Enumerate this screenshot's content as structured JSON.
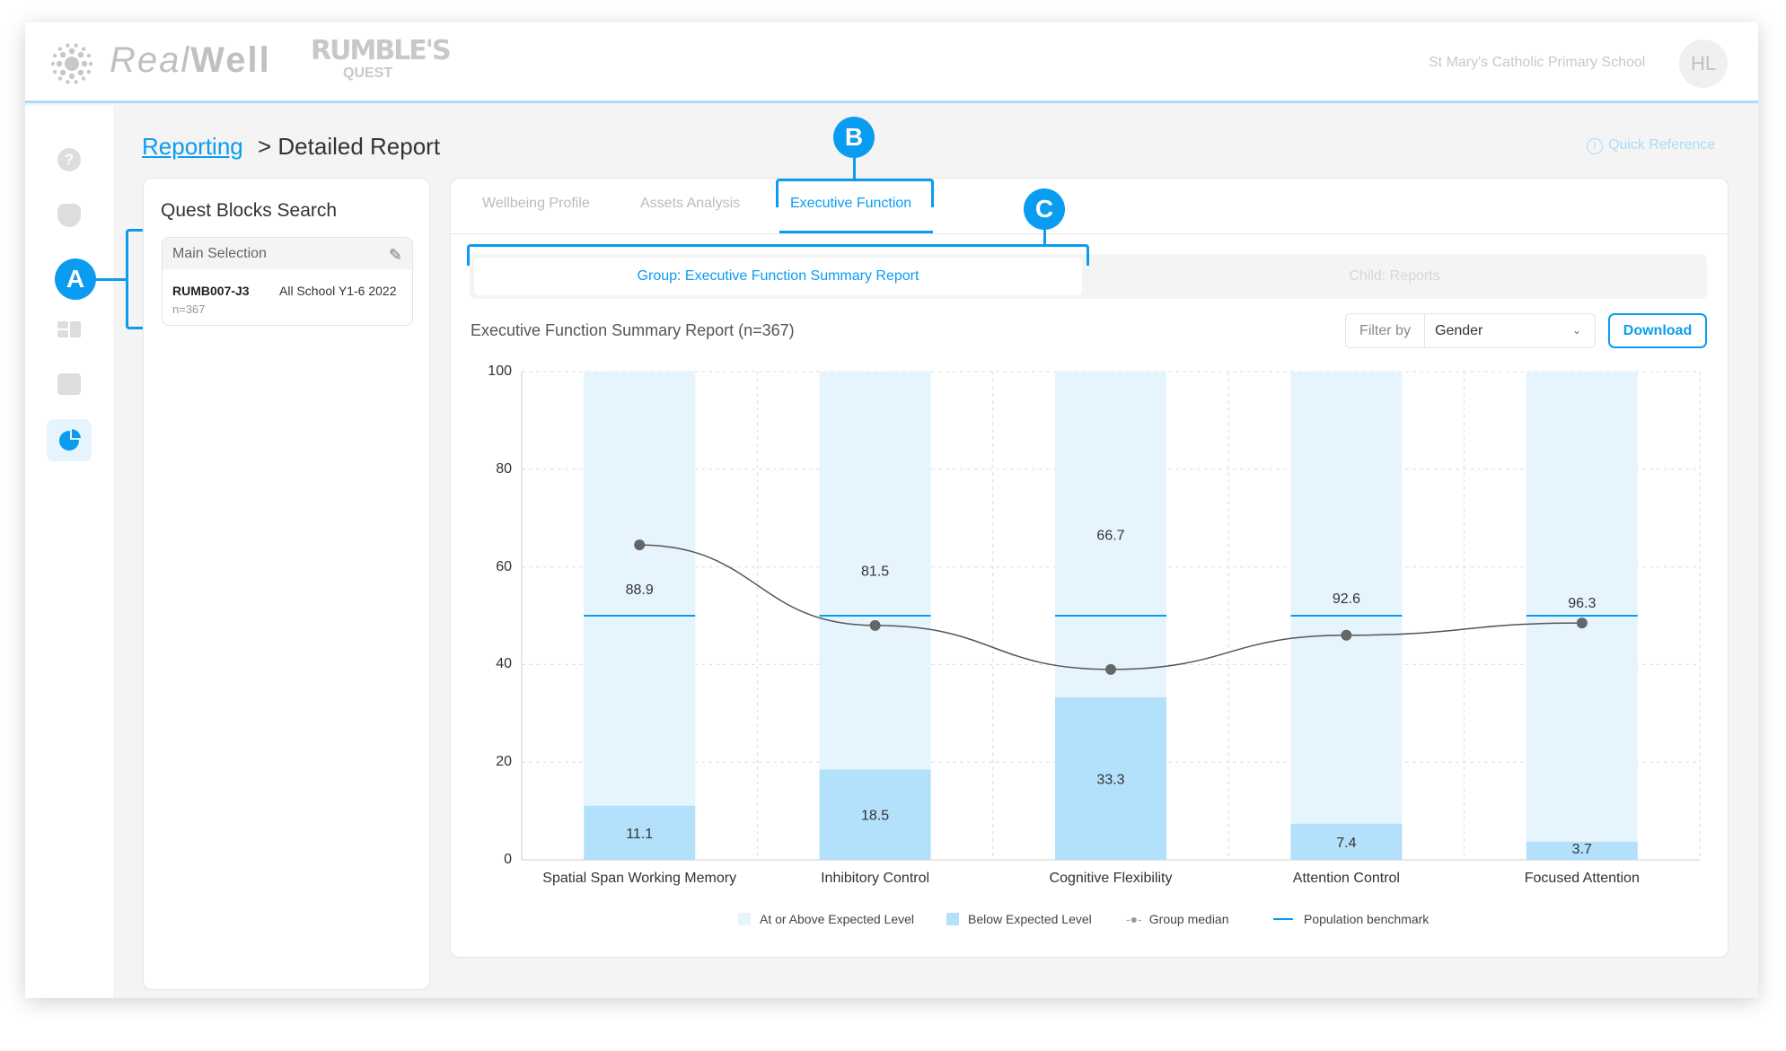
{
  "header": {
    "logo_realwell_light": "Real",
    "logo_realwell_bold": "Well",
    "logo_rumbles": "RUMBLE'S",
    "logo_quest": "QUEST",
    "school": "St Mary's Catholic Primary School",
    "avatar": "HL"
  },
  "breadcrumb": {
    "link": "Reporting",
    "current": "> Detailed Report"
  },
  "quick_reference": "Quick Reference",
  "left_panel": {
    "title": "Quest Blocks Search",
    "selection_title": "Main Selection",
    "code": "RUMB007-J3",
    "label": "All School Y1-6 2022",
    "n": "n=367"
  },
  "badges": {
    "a": "A",
    "b": "B",
    "c": "C"
  },
  "tabs": [
    "Wellbeing Profile",
    "Assets Analysis",
    "Executive Function"
  ],
  "subtabs": [
    "Group: Executive Function Summary Report",
    "Child: Reports"
  ],
  "report_title": "Executive Function Summary Report (n=367)",
  "filter": {
    "label": "Filter by",
    "value": "Gender"
  },
  "download": "Download",
  "chart_data": {
    "type": "bar",
    "stacked": true,
    "categories": [
      "Spatial Span Working Memory",
      "Inhibitory Control",
      "Cognitive Flexibility",
      "Attention Control",
      "Focused Attention"
    ],
    "series": [
      {
        "name": "Below Expected Level",
        "values": [
          11.1,
          18.5,
          33.3,
          7.4,
          3.7
        ],
        "color": "#b3e0fb"
      },
      {
        "name": "At or Above Expected Level",
        "values": [
          88.9,
          81.5,
          66.7,
          92.6,
          96.3
        ],
        "color": "#e6f4fd"
      },
      {
        "name": "Group median",
        "type": "line",
        "values": [
          64.5,
          48,
          39,
          46,
          48.5
        ],
        "color": "#555555"
      },
      {
        "name": "Population benchmark",
        "type": "line",
        "values": [
          50,
          50,
          50,
          50,
          50
        ],
        "color": "#0a9cf0"
      }
    ],
    "yticks": [
      "0",
      "20",
      "40",
      "60",
      "80",
      "100"
    ],
    "ylim": [
      0,
      100
    ],
    "grid": true,
    "legend": [
      "At or Above Expected Level",
      "Below Expected Level",
      "Group median",
      "Population benchmark"
    ],
    "legend_placement": "bottom"
  }
}
